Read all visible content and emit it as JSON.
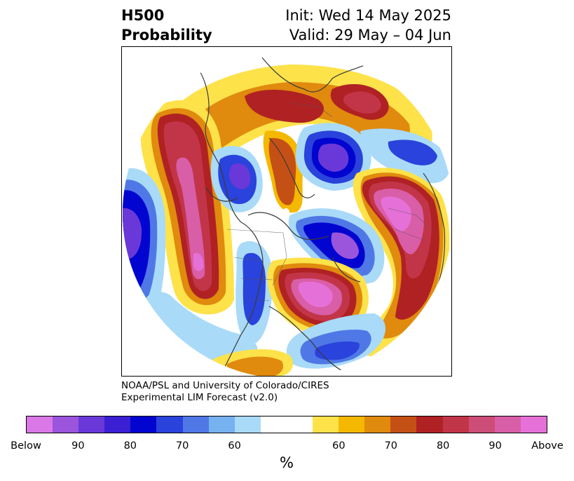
{
  "header": {
    "title_line1": "H500",
    "title_line2": "Probability",
    "init": "Init: Wed 14 May 2025",
    "valid": "Valid: 29 May – 04 Jun"
  },
  "credit": {
    "line1": "NOAA/PSL and University of Colorado/CIRES",
    "line2": "Experimental LIM Forecast (v2.0)"
  },
  "colorbar": {
    "colors": [
      "#d978e6",
      "#9a55dc",
      "#6a38d8",
      "#3b1fd3",
      "#0205cf",
      "#2a43dc",
      "#4f78e6",
      "#76b1f0",
      "#a9daf8",
      "#ffffff",
      "#ffffff",
      "#fde24a",
      "#f4b800",
      "#e08a0e",
      "#c55016",
      "#b02124",
      "#c23548",
      "#cc4d78",
      "#d95ea8",
      "#e571d8"
    ],
    "labels": [
      "Below",
      "90",
      "80",
      "70",
      "60",
      "60",
      "70",
      "80",
      "90",
      "Above"
    ],
    "unit": "%"
  },
  "map": {
    "colors": {
      "above_80": "#c23548",
      "above_90": "#d95ea8",
      "above_max": "#e571d8",
      "above_70": "#b02124",
      "above_65": "#c55016",
      "above_60": "#e08a0e",
      "above_55": "#f4b800",
      "above_50": "#fde24a",
      "below_55": "#a9daf8",
      "below_60": "#76b1f0",
      "below_65": "#4f78e6",
      "below_70": "#2a43dc",
      "below_80": "#0205cf",
      "below_85": "#3b1fd3",
      "below_90": "#6a38d8"
    }
  }
}
